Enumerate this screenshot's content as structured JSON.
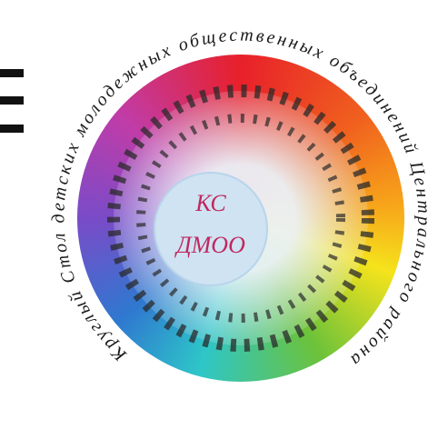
{
  "logo": {
    "ring_text": "Круглый Стол детских молодежных общественных объединений Центрального района",
    "center_lines": [
      "КС",
      "ДМОО"
    ]
  }
}
